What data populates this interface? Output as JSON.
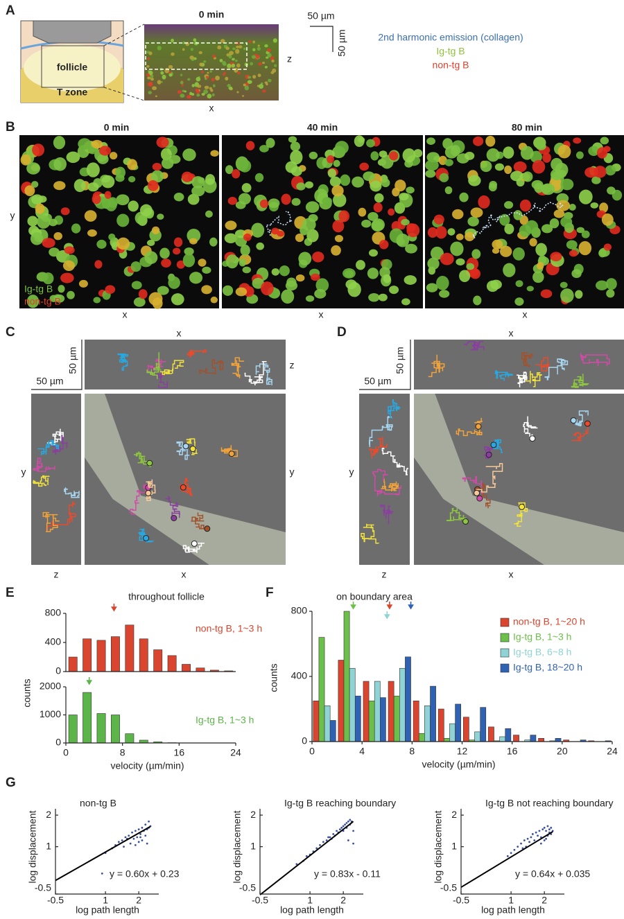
{
  "panel_a": {
    "label": "A",
    "time": "0 min",
    "follicle": "follicle",
    "t_zone": "T zone",
    "axis_z": "z",
    "axis_x": "x",
    "scale_h": "50 µm",
    "scale_v": "50 µm",
    "legend": [
      "2nd harmonic emission (collagen)",
      "Ig-tg B",
      "non-tg B"
    ]
  },
  "panel_b": {
    "label": "B",
    "times": [
      "0 min",
      "40 min",
      "80 min"
    ],
    "axis_y": "y",
    "axis_x": [
      "x",
      "x",
      "x"
    ],
    "legend": [
      "Ig-tg B",
      "non-tg B"
    ]
  },
  "panel_c": {
    "label": "C",
    "top_x": "x",
    "right_z": "z",
    "scale_v": "50 µm",
    "scale_h": "50 µm",
    "left_y": "y",
    "right_y": "y",
    "bottom_z": "z",
    "bottom_x": "x"
  },
  "panel_d": {
    "label": "D",
    "top_x": "x",
    "right_z": "z",
    "scale_v": "50 µm",
    "scale_h": "50 µm",
    "left_y": "y",
    "right_y": "y",
    "bottom_z": "z",
    "bottom_x": "x"
  },
  "panel_e": {
    "label": "E",
    "title": "throughout follicle",
    "y_label": "counts"
  },
  "panel_f": {
    "label": "F",
    "title": "on boundary area",
    "y_label": "counts"
  },
  "panel_g": {
    "label": "G"
  },
  "chart_data": [
    {
      "type": "histogram",
      "bins": [
        0,
        2,
        4,
        6,
        8,
        10,
        12,
        14,
        16,
        18,
        20,
        22,
        24
      ],
      "series": [
        {
          "name": "non-tg B, 1~3 h",
          "color": "#d9452f",
          "values": [
            200,
            450,
            430,
            480,
            640,
            450,
            300,
            220,
            100,
            50,
            20,
            10
          ],
          "marker": 6.8
        }
      ],
      "xlim": [
        0,
        24
      ],
      "ylim": [
        0,
        800
      ],
      "yticks": [
        0,
        400,
        800
      ]
    },
    {
      "type": "histogram",
      "bins": [
        0,
        2,
        4,
        6,
        8,
        10,
        12,
        14,
        16,
        18,
        20,
        22,
        24
      ],
      "series": [
        {
          "name": "Ig-tg B, 1~3 h",
          "color": "#5cb548",
          "values": [
            1000,
            1800,
            1050,
            1000,
            330,
            100,
            40,
            10,
            0,
            0,
            0,
            0
          ],
          "marker": 3.3
        }
      ],
      "xlim": [
        0,
        24
      ],
      "ylim": [
        0,
        2000
      ],
      "yticks": [
        0,
        1000,
        2000
      ],
      "xticks": [
        0,
        8,
        16,
        24
      ],
      "x_label": "velocity (µm/min)"
    },
    {
      "type": "histogram",
      "bins": [
        0,
        2,
        4,
        6,
        8,
        10,
        12,
        14,
        16,
        18,
        20,
        22,
        24
      ],
      "series": [
        {
          "name": "non-tg B, 1~20 h",
          "color": "#d9452f",
          "values": [
            250,
            500,
            370,
            370,
            250,
            200,
            150,
            90,
            40,
            20,
            10,
            5
          ],
          "marker": 6.2
        },
        {
          "name": "Ig-tg B, 1~3 h",
          "color": "#6cbf4a",
          "values": [
            640,
            800,
            250,
            280,
            50,
            20,
            10,
            5,
            0,
            0,
            0,
            0
          ],
          "marker": 3.3
        },
        {
          "name": "Ig-tg B, 6~8 h",
          "color": "#8fd3d4",
          "values": [
            220,
            450,
            370,
            450,
            220,
            110,
            60,
            30,
            10,
            5,
            0,
            0
          ],
          "marker": 6.0
        },
        {
          "name": "Ig-tg B, 18~20 h",
          "color": "#2f62b3",
          "values": [
            130,
            280,
            270,
            520,
            340,
            230,
            210,
            80,
            40,
            20,
            10,
            5
          ],
          "marker": 7.9
        }
      ],
      "xlim": [
        0,
        24
      ],
      "xticks": [
        0,
        4,
        8,
        12,
        16,
        20,
        24
      ],
      "ylim": [
        0,
        800
      ],
      "yticks": [
        0,
        400,
        800
      ],
      "x_label": "velocity (µm/min)",
      "legend": "upper right"
    },
    {
      "type": "scatter",
      "title": "non-tg B",
      "color": "#3b4fa0",
      "x": [
        1.3,
        1.4,
        1.5,
        1.55,
        1.6,
        1.7,
        1.75,
        1.8,
        1.85,
        1.9,
        1.95,
        2.0,
        2.0,
        2.05,
        2.1,
        2.1,
        2.15,
        2.2,
        2.2,
        2.25,
        2.3,
        2.3,
        2.35,
        1.0,
        1.2,
        1.65,
        1.9,
        2.05,
        2.25,
        0.9
      ],
      "values": [
        1.05,
        1.15,
        1.2,
        1.0,
        1.3,
        1.35,
        1.1,
        1.45,
        1.25,
        1.5,
        1.3,
        1.55,
        1.15,
        1.4,
        1.6,
        1.2,
        1.5,
        1.7,
        1.35,
        1.55,
        1.8,
        1.6,
        1.65,
        0.8,
        0.95,
        1.25,
        1.05,
        1.3,
        1.1,
        0.15
      ],
      "fit": {
        "slope": 0.6,
        "intercept": 0.23,
        "label": "y = 0.60x + 0.23"
      },
      "xlim": [
        -0.5,
        2.6
      ],
      "ylim": [
        -0.5,
        2.2
      ],
      "xticks": [
        -0.5,
        1,
        2
      ],
      "yticks": [
        -0.5,
        1,
        2
      ],
      "x_label": "log path length",
      "y_label": "log displacement"
    },
    {
      "type": "scatter",
      "title": "Ig-tg B reaching boundary",
      "color": "#3b4fa0",
      "x": [
        0.6,
        0.9,
        1.1,
        1.3,
        1.4,
        1.5,
        1.6,
        1.7,
        1.75,
        1.8,
        1.85,
        1.9,
        1.95,
        2.0,
        2.0,
        2.05,
        2.1,
        2.1,
        2.15,
        2.2,
        2.2,
        2.25,
        2.3,
        1.2,
        1.55,
        1.65,
        2.15,
        2.3,
        1.0,
        0.8
      ],
      "values": [
        0.45,
        0.7,
        0.85,
        1.05,
        1.15,
        1.2,
        1.3,
        1.4,
        1.35,
        1.5,
        1.45,
        1.55,
        1.6,
        1.65,
        1.5,
        1.7,
        1.75,
        1.6,
        1.8,
        1.85,
        1.7,
        1.8,
        1.5,
        0.95,
        1.3,
        1.25,
        1.2,
        1.1,
        0.75,
        0.55
      ],
      "fit": {
        "slope": 0.83,
        "intercept": -0.11,
        "label": "y = 0.83x - 0.11"
      },
      "xlim": [
        -0.5,
        2.6
      ],
      "ylim": [
        -0.5,
        2.2
      ],
      "xticks": [
        -0.5,
        1,
        2
      ],
      "yticks": [
        -0.5,
        1,
        2
      ],
      "x_label": "log path length",
      "y_label": "log displacement"
    },
    {
      "type": "scatter",
      "title": "Ig-tg B not reaching boundary",
      "color": "#3b4fa0",
      "x": [
        1.2,
        1.3,
        1.4,
        1.5,
        1.6,
        1.65,
        1.7,
        1.75,
        1.8,
        1.85,
        1.9,
        1.95,
        2.0,
        2.0,
        2.05,
        2.1,
        2.1,
        2.15,
        2.2,
        2.2,
        2.25,
        1.1,
        1.45,
        1.55,
        1.9,
        2.05,
        0.9,
        1.0,
        1.35,
        2.15
      ],
      "values": [
        1.0,
        1.1,
        1.2,
        1.25,
        1.3,
        1.4,
        1.2,
        1.45,
        1.35,
        1.5,
        1.3,
        1.55,
        1.6,
        1.2,
        1.5,
        1.65,
        1.35,
        1.55,
        1.6,
        1.4,
        1.5,
        0.9,
        1.0,
        1.15,
        1.1,
        1.25,
        0.7,
        0.8,
        0.95,
        1.45
      ],
      "fit": {
        "slope": 0.64,
        "intercept": 0.035,
        "label": "y = 0.64x + 0.035"
      },
      "xlim": [
        -0.5,
        2.6
      ],
      "ylim": [
        -0.5,
        2.2
      ],
      "xticks": [
        -0.5,
        1,
        2
      ],
      "yticks": [
        -0.5,
        1,
        2
      ],
      "x_label": "log path length",
      "y_label": "log displacement"
    }
  ]
}
